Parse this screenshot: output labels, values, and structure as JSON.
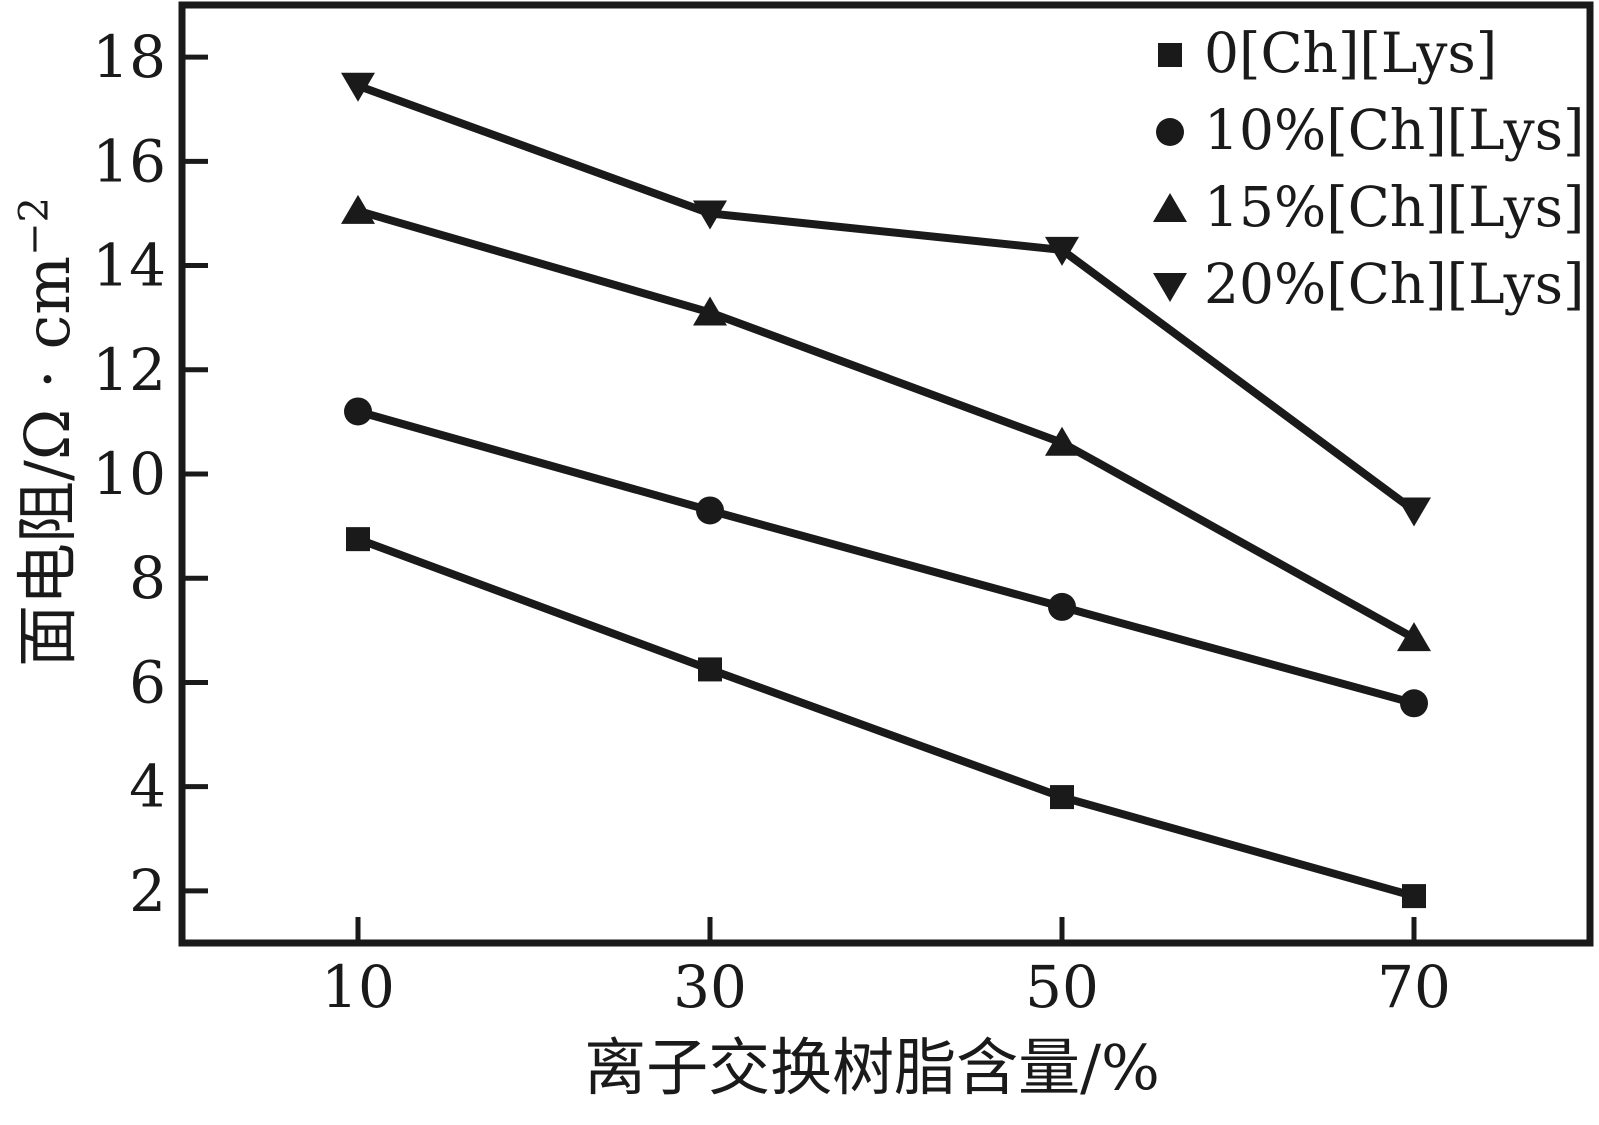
{
  "figure": {
    "background": "#ffffff",
    "ink_color": "#1a1a1a"
  },
  "chart_data": {
    "type": "line",
    "title": "",
    "xlabel": "离子交换树脂含量/%",
    "ylabel_base": "面电阻/Ω · cm",
    "ylabel_exponent": "−2",
    "x": [
      10,
      30,
      50,
      70
    ],
    "xticks": [
      "10",
      "30",
      "50",
      "70"
    ],
    "yticks": [
      "2",
      "4",
      "6",
      "8",
      "10",
      "12",
      "14",
      "16",
      "18"
    ],
    "xlim": [
      0,
      80
    ],
    "ylim": [
      1,
      19
    ],
    "grid": false,
    "legend_position": "top-right-inside",
    "line_color": "#1a1a1a",
    "line_width": 8,
    "series": [
      {
        "name": "0[Ch][Lys]",
        "marker": "square",
        "values": [
          8.75,
          6.25,
          3.8,
          1.9
        ]
      },
      {
        "name": "10%[Ch][Lys]",
        "marker": "circle",
        "values": [
          11.2,
          9.3,
          7.45,
          5.6
        ]
      },
      {
        "name": "15%[Ch][Lys]",
        "marker": "triangle-up",
        "values": [
          15.05,
          13.1,
          10.6,
          6.85
        ]
      },
      {
        "name": "20%[Ch][Lys]",
        "marker": "triangle-down",
        "values": [
          17.45,
          15.0,
          14.3,
          9.3
        ]
      }
    ]
  }
}
